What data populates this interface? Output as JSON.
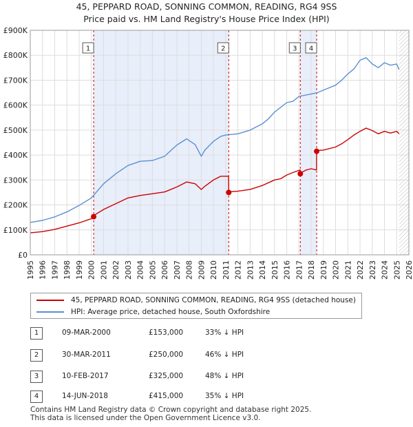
{
  "header": {
    "line1": "45, PEPPARD ROAD, SONNING COMMON, READING, RG4 9SS",
    "line2": "Price paid vs. HM Land Registry's House Price Index (HPI)"
  },
  "colors": {
    "property": "#cc0000",
    "hpi": "#5b8fd0",
    "shade": "#e8eefa",
    "grid": "#dddddd"
  },
  "chart_data": {
    "type": "line",
    "title": "45, PEPPARD ROAD, SONNING COMMON, READING, RG4 9SS",
    "subtitle": "Price paid vs. HM Land Registry's House Price Index (HPI)",
    "xlabel": "",
    "ylabel": "",
    "xlim": [
      1995,
      2026
    ],
    "ylim": [
      0,
      900000
    ],
    "y_ticks": [
      0,
      100000,
      200000,
      300000,
      400000,
      500000,
      600000,
      700000,
      800000,
      900000
    ],
    "y_tick_labels": [
      "£0",
      "£100K",
      "£200K",
      "£300K",
      "£400K",
      "£500K",
      "£600K",
      "£700K",
      "£800K",
      "£900K"
    ],
    "x_ticks": [
      1995,
      1996,
      1997,
      1998,
      1999,
      2000,
      2001,
      2002,
      2003,
      2004,
      2005,
      2006,
      2007,
      2008,
      2009,
      2010,
      2011,
      2012,
      2013,
      2014,
      2015,
      2016,
      2017,
      2018,
      2019,
      2020,
      2021,
      2022,
      2023,
      2024,
      2025,
      2026
    ],
    "shaded_ranges": [
      [
        2000.19,
        2011.25
      ],
      [
        2017.11,
        2018.45
      ]
    ],
    "series": [
      {
        "name": "45, PEPPARD ROAD, SONNING COMMON, READING, RG4 9SS (detached house)",
        "color": "#cc0000",
        "x": [
          1995.0,
          1996.0,
          1997.0,
          1998.0,
          1999.0,
          2000.0,
          2000.19,
          2000.2,
          2001.0,
          2002.0,
          2003.0,
          2004.0,
          2005.0,
          2006.0,
          2007.0,
          2007.8,
          2008.5,
          2009.0,
          2009.3,
          2010.0,
          2010.6,
          2011.24,
          2011.25,
          2011.26,
          2012.0,
          2013.0,
          2014.0,
          2015.0,
          2015.5,
          2016.0,
          2016.5,
          2017.1,
          2017.11,
          2017.12,
          2017.6,
          2018.0,
          2018.44,
          2018.45,
          2018.46,
          2019.0,
          2020.0,
          2020.5,
          2021.0,
          2021.5,
          2022.0,
          2022.5,
          2023.0,
          2023.5,
          2024.0,
          2024.5,
          2025.0,
          2025.2
        ],
        "values": [
          88000,
          93000,
          102000,
          115000,
          128000,
          145000,
          153000,
          158000,
          182000,
          205000,
          228000,
          238000,
          245000,
          252000,
          272000,
          292000,
          285000,
          262000,
          275000,
          300000,
          315000,
          315000,
          250000,
          252000,
          255000,
          262000,
          278000,
          300000,
          305000,
          320000,
          330000,
          340000,
          325000,
          328000,
          340000,
          345000,
          340000,
          415000,
          418000,
          420000,
          432000,
          445000,
          462000,
          480000,
          495000,
          508000,
          498000,
          485000,
          495000,
          488000,
          495000,
          485000
        ]
      },
      {
        "name": "HPI: Average price, detached house, South Oxfordshire",
        "color": "#5b8fd0",
        "x": [
          1995.0,
          1996.0,
          1997.0,
          1998.0,
          1999.0,
          2000.0,
          2001.0,
          2002.0,
          2003.0,
          2004.0,
          2005.0,
          2006.0,
          2007.0,
          2007.8,
          2008.5,
          2009.0,
          2009.3,
          2010.0,
          2010.6,
          2011.0,
          2012.0,
          2013.0,
          2014.0,
          2014.5,
          2015.0,
          2016.0,
          2016.5,
          2017.0,
          2018.0,
          2018.5,
          2019.0,
          2020.0,
          2020.5,
          2021.0,
          2021.5,
          2022.0,
          2022.5,
          2023.0,
          2023.5,
          2024.0,
          2024.5,
          2025.0,
          2025.2
        ],
        "values": [
          130000,
          138000,
          152000,
          172000,
          198000,
          228000,
          285000,
          325000,
          358000,
          375000,
          378000,
          395000,
          440000,
          465000,
          442000,
          395000,
          420000,
          455000,
          475000,
          480000,
          485000,
          500000,
          525000,
          545000,
          572000,
          610000,
          615000,
          635000,
          645000,
          650000,
          660000,
          680000,
          700000,
          725000,
          745000,
          780000,
          790000,
          765000,
          750000,
          770000,
          760000,
          765000,
          742000
        ]
      }
    ],
    "markers": [
      {
        "label": "1",
        "x": 2000.19,
        "value": 153000
      },
      {
        "label": "2",
        "x": 2011.25,
        "value": 250000
      },
      {
        "label": "3",
        "x": 2017.11,
        "value": 325000
      },
      {
        "label": "4",
        "x": 2018.45,
        "value": 415000
      }
    ]
  },
  "legend": {
    "property_label": "45, PEPPARD ROAD, SONNING COMMON, READING, RG4 9SS (detached house)",
    "hpi_label": "HPI: Average price, detached house, South Oxfordshire"
  },
  "transactions": [
    {
      "num": "1",
      "date": "09-MAR-2000",
      "price": "£153,000",
      "hpi": "33% ↓ HPI"
    },
    {
      "num": "2",
      "date": "30-MAR-2011",
      "price": "£250,000",
      "hpi": "46% ↓ HPI"
    },
    {
      "num": "3",
      "date": "10-FEB-2017",
      "price": "£325,000",
      "hpi": "48% ↓ HPI"
    },
    {
      "num": "4",
      "date": "14-JUN-2018",
      "price": "£415,000",
      "hpi": "35% ↓ HPI"
    }
  ],
  "footer": {
    "line1": "Contains HM Land Registry data © Crown copyright and database right 2025.",
    "line2": "This data is licensed under the Open Government Licence v3.0."
  }
}
